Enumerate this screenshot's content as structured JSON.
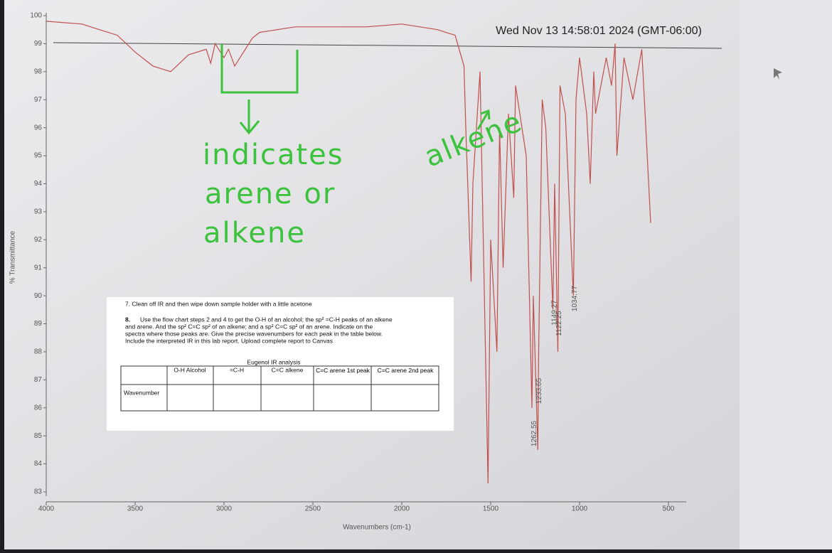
{
  "timestamp": "Wed Nov 13 14:58:01 2024 (GMT-06:00)",
  "chart_data": {
    "type": "line",
    "x_label": "Wavenumbers (cm-1)",
    "y_label": "% Transmittance",
    "xlim": [
      4000,
      500
    ],
    "ylim": [
      83,
      100
    ],
    "xticks": [
      4000,
      3500,
      3000,
      2500,
      2000,
      1500,
      1000,
      500
    ],
    "yticks": [
      83,
      84,
      85,
      86,
      87,
      88,
      89,
      90,
      91,
      92,
      93,
      94,
      95,
      96,
      97,
      98,
      99,
      100
    ],
    "color": "#c0504d",
    "x": [
      4000,
      3800,
      3600,
      3500,
      3400,
      3300,
      3200,
      3100,
      3075,
      3050,
      3000,
      2975,
      2940,
      2900,
      2840,
      2800,
      2600,
      2400,
      2200,
      2000,
      1800,
      1700,
      1650,
      1640,
      1610,
      1600,
      1560,
      1515,
      1500,
      1465,
      1450,
      1430,
      1400,
      1370,
      1360,
      1300,
      1268,
      1260,
      1235,
      1230,
      1210,
      1190,
      1150,
      1140,
      1122,
      1110,
      1080,
      1035,
      1020,
      1000,
      960,
      940,
      920,
      910,
      850,
      820,
      800,
      790,
      750,
      700,
      650,
      600
    ],
    "values": [
      99.8,
      99.7,
      99.3,
      98.7,
      98.2,
      98.0,
      98.6,
      98.8,
      98.3,
      99.0,
      98.5,
      98.8,
      98.2,
      98.6,
      99.2,
      99.4,
      99.6,
      99.6,
      99.6,
      99.7,
      99.5,
      99.3,
      98.2,
      96.0,
      90.5,
      94.0,
      98.0,
      83.3,
      92.0,
      88.0,
      96.0,
      91.0,
      96.5,
      93.5,
      97.5,
      95.0,
      86.0,
      90.0,
      84.5,
      88.0,
      97.0,
      96.0,
      89.5,
      94.0,
      88.0,
      97.5,
      96.5,
      90.0,
      97.0,
      98.5,
      96.5,
      94.0,
      98.0,
      96.5,
      98.5,
      97.5,
      99.0,
      95.0,
      98.5,
      97.0,
      98.8,
      92.6
    ],
    "peak_labels": [
      1262.55,
      1233.65,
      1149.27,
      1122.25,
      1034.77
    ],
    "annotations": [
      "indicates",
      "arene or",
      "alkene",
      "alkene"
    ]
  },
  "document": {
    "step7": "7. Clean off IR and then wipe down sample holder with a little acetone",
    "step8_number": "8.",
    "step8_lines": [
      "Use the flow chart steps 2 and 4 to get the O-H of an alcohol; the sp² =C-H peaks of an alkene",
      "and arene. And the sp² C=C sp² of an alkene; and a sp² C=C sp² of an arene. Indicate on the",
      "spectra where those peaks are. Give the precise wavenumbers for each peak in the table below.",
      "Include the interpreted IR in this lab report. Upload complete report to Canvas"
    ],
    "table": {
      "title": "Eugenol IR analysis",
      "headers": [
        "O-H Alcohol",
        "=C-H",
        "C=C alkene",
        "C=C arene 1st peak",
        "C=C arene 2nd peak"
      ],
      "row_label": "Wavenumber"
    }
  }
}
